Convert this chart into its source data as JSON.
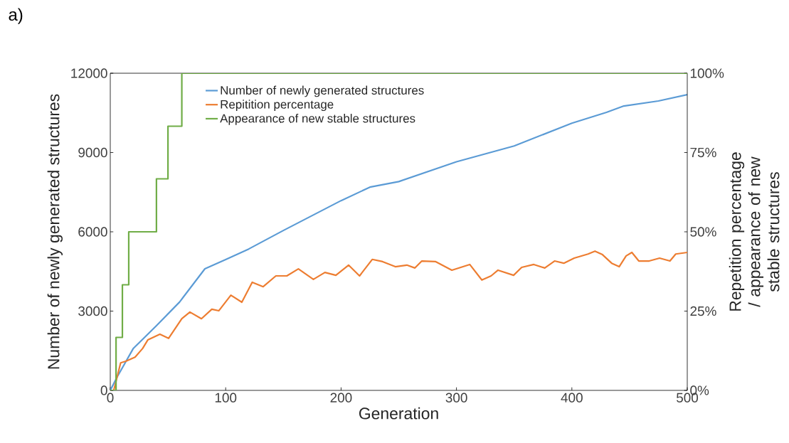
{
  "chart_data": {
    "type": "line",
    "xlabel": "Generation",
    "ylabel": "Number of newly generated structures",
    "y2label": "Repetition percentage / appearance of new stable structures",
    "annotations": [
      "a)"
    ],
    "xlim": [
      0,
      500
    ],
    "xticks": [
      0,
      100,
      200,
      300,
      400,
      500
    ],
    "ylim": [
      0,
      12000
    ],
    "yticks": [
      0,
      3000,
      6000,
      9000,
      12000
    ],
    "y2lim": [
      0,
      100
    ],
    "y2ticks": [
      {
        "value": 0,
        "label": "0%"
      },
      {
        "value": 25,
        "label": "25%"
      },
      {
        "value": 50,
        "label": "50%"
      },
      {
        "value": 75,
        "label": "75%"
      },
      {
        "value": 100,
        "label": "100%"
      }
    ],
    "legend": "top left",
    "grid": false,
    "marker": "none",
    "line_style": "solid",
    "series": [
      {
        "name": "Number of newly generated structures",
        "color": "#5b9bd5",
        "x": [
          0,
          6,
          20,
          40,
          60,
          82,
          100,
          120,
          150,
          200,
          225,
          250,
          300,
          350,
          400,
          430,
          445,
          475,
          500
        ],
        "values": [
          0,
          510,
          1590,
          2450,
          3340,
          4600,
          4950,
          5350,
          6050,
          7180,
          7690,
          7900,
          8650,
          9250,
          10110,
          10520,
          10760,
          10950,
          11190
        ]
      },
      {
        "name": "Repitition percentage",
        "color": "#ed7d31",
        "axis": "y2",
        "x": [
          0,
          3,
          9,
          13.5,
          21.5,
          28,
          32.5,
          43,
          50.5,
          62,
          69,
          79,
          88,
          94,
          104.5,
          114,
          123,
          132.5,
          143.5,
          153,
          163,
          176,
          186,
          195.5,
          206.5,
          216,
          227,
          236,
          247,
          257,
          264,
          270,
          282,
          296,
          311.5,
          322,
          330,
          336,
          349.5,
          356.5,
          367,
          376.5,
          385,
          393,
          402,
          414,
          420,
          426.5,
          434.5,
          441,
          447,
          452,
          458,
          467,
          476,
          485,
          490,
          500
        ],
        "values": [
          0,
          0,
          8.7,
          9.2,
          10.5,
          13.2,
          15.9,
          17.7,
          16.4,
          22.6,
          24.7,
          22.6,
          25.6,
          25.1,
          30,
          27.8,
          34.1,
          32.7,
          36.1,
          36.1,
          38.3,
          35,
          37.2,
          36.3,
          39.5,
          36.1,
          41.3,
          40.6,
          39,
          39.5,
          38.6,
          40.8,
          40.6,
          37.9,
          39.7,
          34.8,
          36.1,
          37.9,
          36.3,
          38.8,
          39.7,
          38.6,
          40.8,
          40.1,
          41.7,
          43,
          43.9,
          42.8,
          40.1,
          39,
          42.4,
          43.5,
          40.8,
          40.8,
          41.7,
          40.8,
          43,
          43.5
        ]
      },
      {
        "name": "Appearance of new stable structures",
        "color": "#70ad47",
        "axis": "y2",
        "type": "step",
        "x": [
          0,
          5,
          10.5,
          16,
          40,
          50,
          62,
          500
        ],
        "values": [
          0,
          16.7,
          33.3,
          50,
          66.7,
          83.3,
          100,
          100
        ]
      }
    ]
  }
}
